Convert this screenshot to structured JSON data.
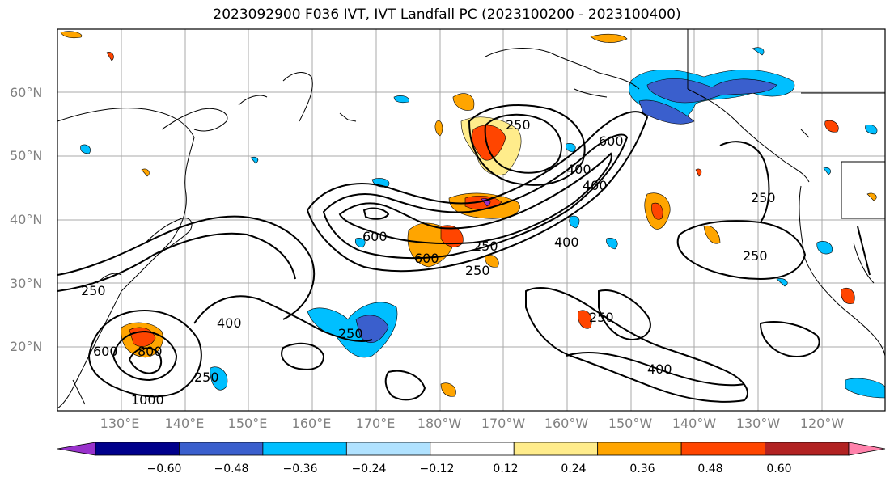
{
  "title": "2023092900 F036 IVT, IVT Landfall PC (2023100200 - 2023100400)",
  "lat_labels": [
    "60°N",
    "50°N",
    "40°N",
    "30°N",
    "20°N"
  ],
  "lon_labels": [
    "130°E",
    "140°E",
    "150°E",
    "160°E",
    "170°E",
    "180°W",
    "170°W",
    "160°W",
    "150°W",
    "140°W",
    "130°W",
    "120°W"
  ],
  "contour_labels": [
    "250",
    "250",
    "250",
    "250",
    "250",
    "250",
    "250",
    "250",
    "400",
    "400",
    "400",
    "400",
    "600",
    "600",
    "600",
    "600",
    "800",
    "1000",
    "400",
    "250"
  ],
  "colorbar": {
    "colors": [
      "#9932cc",
      "#00008b",
      "#3a5fcd",
      "#00bfff",
      "#b0e2ff",
      "#ffffff",
      "#ffec8b",
      "#ffa500",
      "#ff4500",
      "#b22222",
      "#ff82ab"
    ],
    "tick_labels": [
      "−0.60",
      "−0.48",
      "−0.36",
      "−0.24",
      "−0.12",
      "0.12",
      "0.24",
      "0.36",
      "0.48",
      "0.60"
    ]
  },
  "colors": {
    "land_line": "#000000",
    "grid": "#a9a9a9",
    "contour": "#000000",
    "label": "#808080"
  }
}
